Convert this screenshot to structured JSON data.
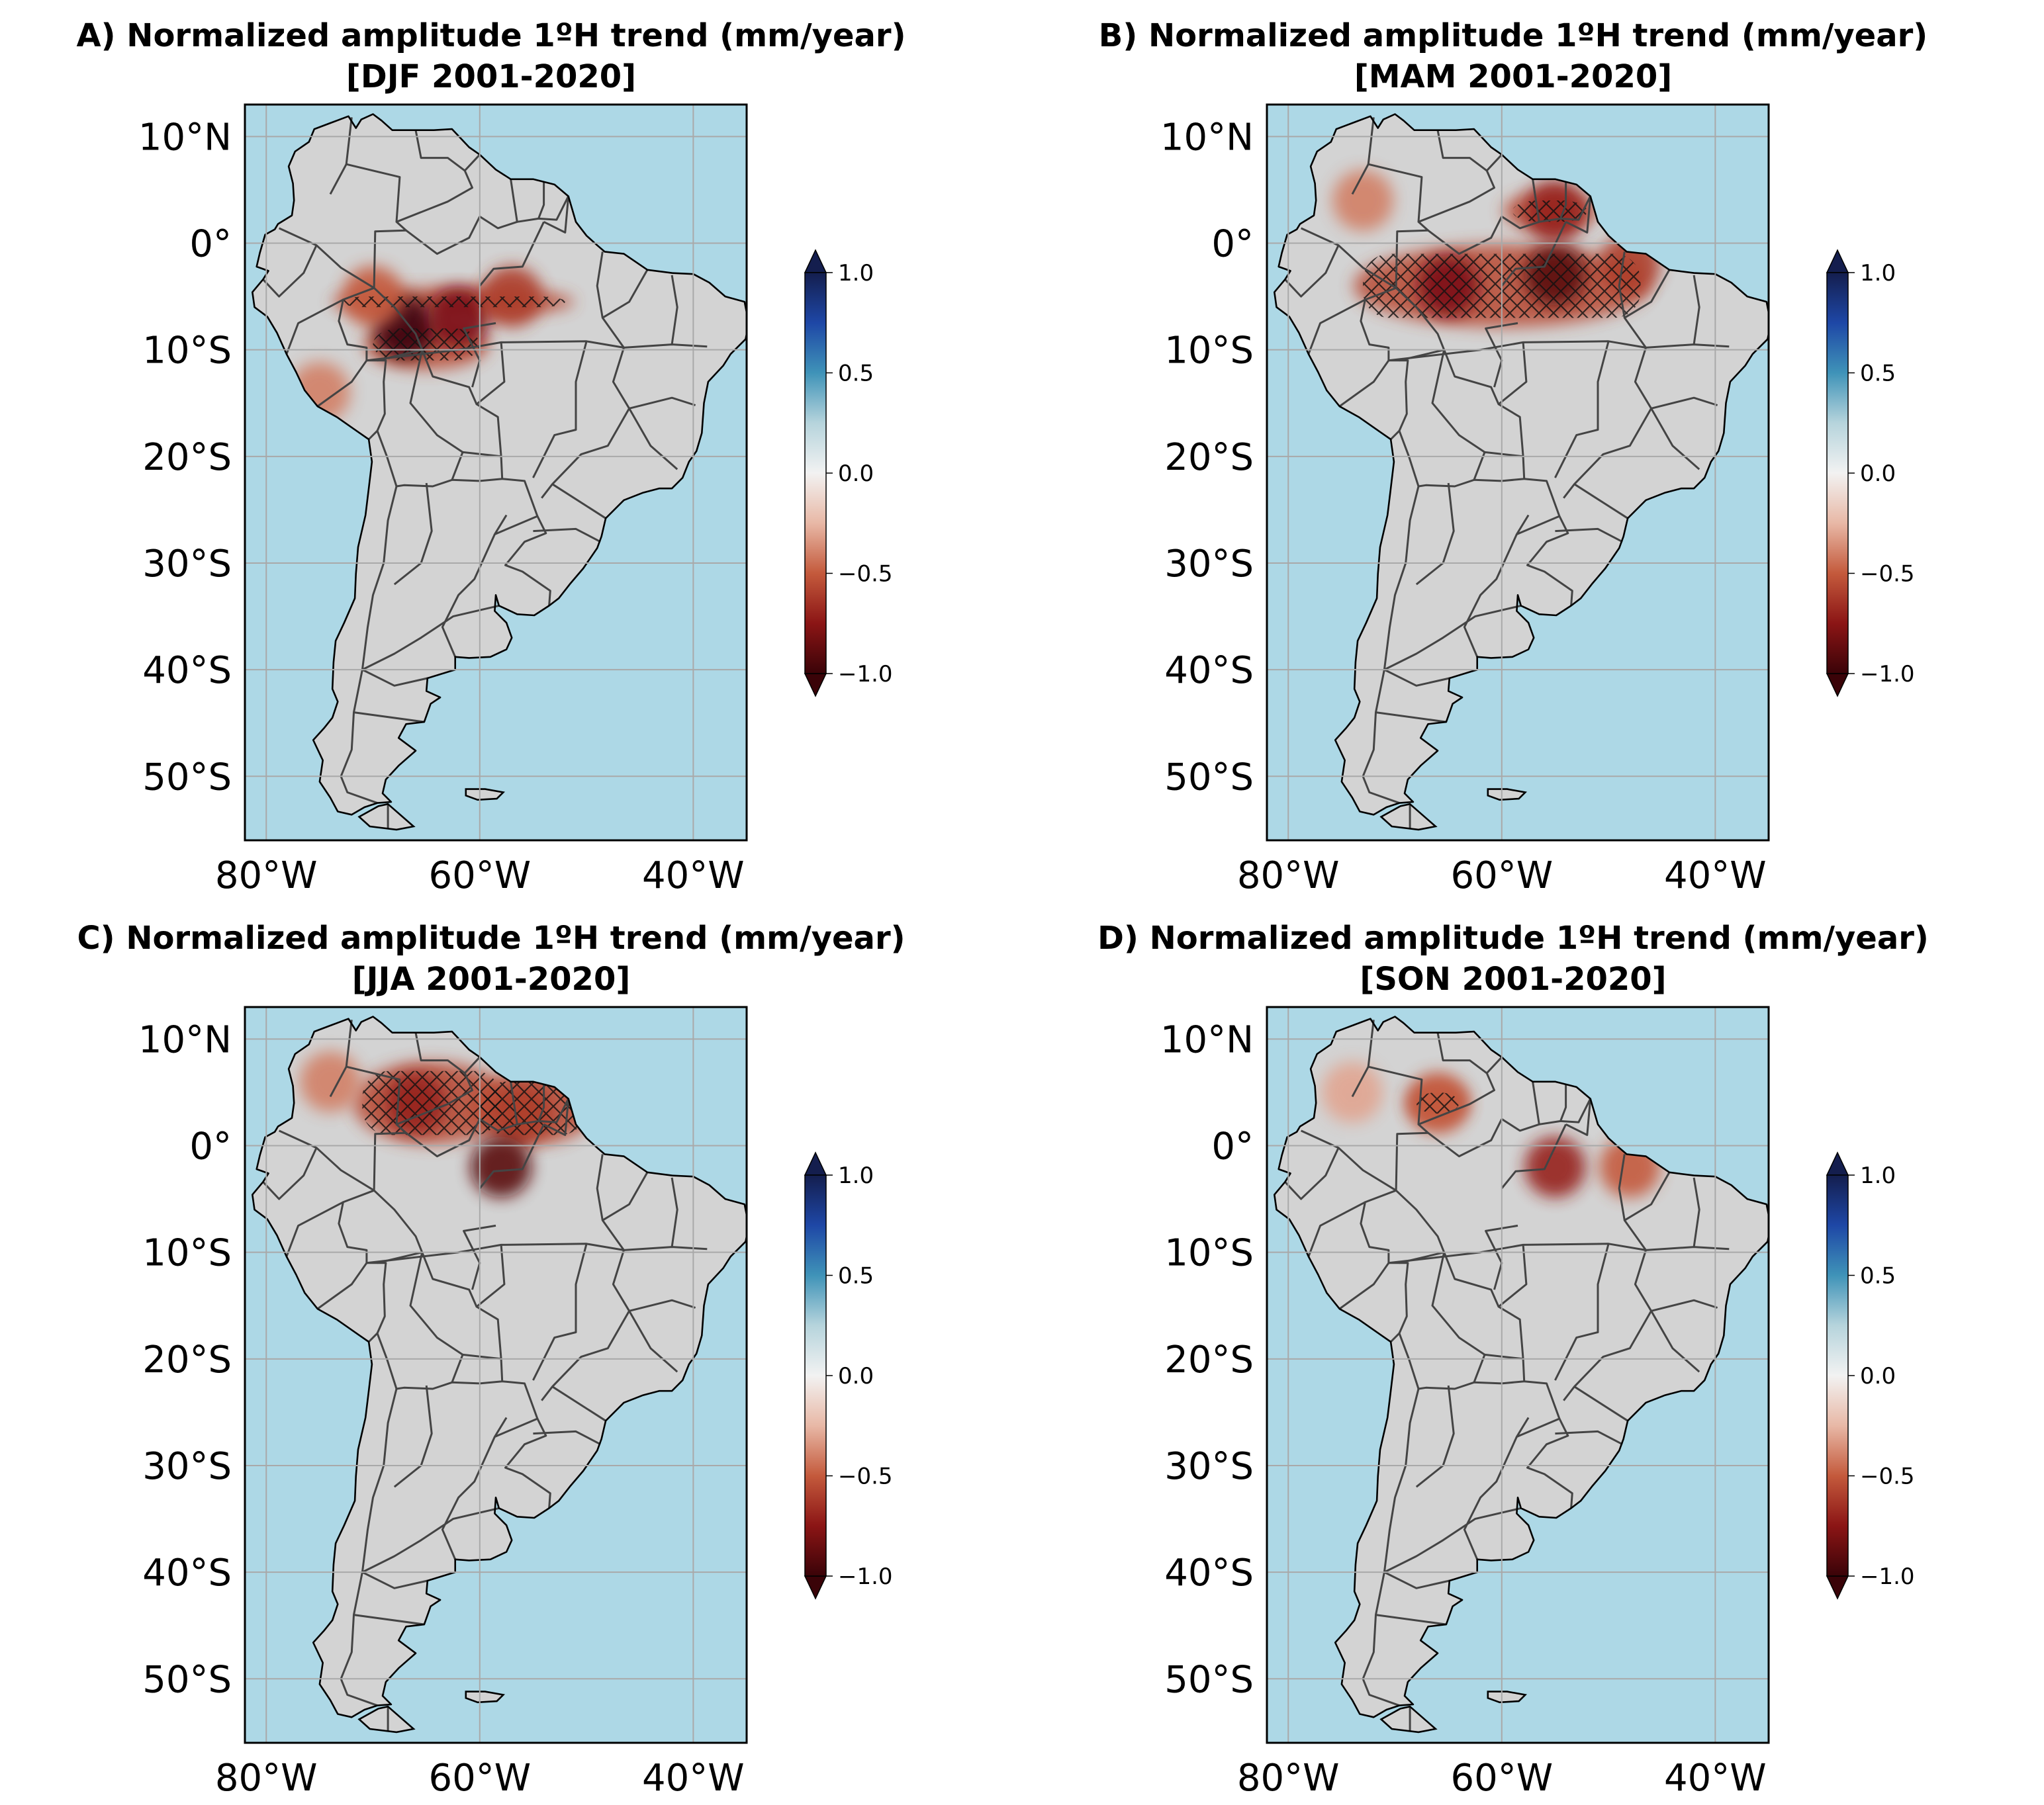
{
  "figure": {
    "colors": {
      "ocean": "#ADD8E6",
      "land": "#D3D3D3",
      "grid": "#A9A9A9",
      "border": "#444444",
      "coast": "#000000",
      "cmap": [
        "#3a0308",
        "#8b1515",
        "#c45a3c",
        "#e8b8a6",
        "#f2f2f2",
        "#b6d4dc",
        "#3f93b8",
        "#1e47a6",
        "#141e4e"
      ]
    },
    "map_extent": {
      "lon": [
        -82,
        -35
      ],
      "lat": [
        -56,
        13
      ]
    },
    "lat_ticks": [
      10,
      0,
      -10,
      -20,
      -30,
      -40,
      -50
    ],
    "lat_labels": [
      "10°N",
      "0°",
      "10°S",
      "20°S",
      "30°S",
      "40°S",
      "50°S"
    ],
    "lon_ticks": [
      -80,
      -60,
      -40
    ],
    "lon_labels": [
      "80°W",
      "60°W",
      "40°W"
    ],
    "colorbar": {
      "range": [
        -1.0,
        1.0
      ],
      "ticks": [
        1.0,
        0.5,
        0.0,
        -0.5,
        -1.0
      ],
      "tick_labels": [
        "1.0",
        "0.5",
        "0.0",
        "−0.5",
        "−1.0"
      ],
      "extend": "both",
      "cmap_name": "diverging red-white-blue"
    }
  },
  "panels": [
    {
      "id": "A",
      "title_line1": "A) Normalized amplitude 1ºH trend (mm/year)",
      "title_line2": "[DJF 2001-2020]",
      "hatched_regions": [
        [
          -73,
          -6,
          -52,
          -5
        ],
        [
          -70,
          -11,
          -60,
          -8
        ]
      ],
      "trend_patches": [
        [
          -67,
          -8,
          -1.0
        ],
        [
          -62,
          -7,
          -0.8
        ],
        [
          -57,
          -5,
          -0.6
        ],
        [
          -70,
          -5,
          -0.5
        ],
        [
          -75,
          -14,
          -0.4
        ]
      ]
    },
    {
      "id": "B",
      "title_line1": "B) Normalized amplitude 1ºH trend (mm/year)",
      "title_line2": "[MAM 2001-2020]",
      "hatched_regions": [
        [
          -73,
          -7,
          -47,
          -1
        ],
        [
          -59,
          2,
          -52,
          4
        ]
      ],
      "trend_patches": [
        [
          -65,
          -4,
          -0.8
        ],
        [
          -55,
          -3,
          -0.9
        ],
        [
          -55,
          3,
          -0.7
        ],
        [
          -73,
          4,
          -0.4
        ],
        [
          -48,
          -2,
          -0.6
        ]
      ]
    },
    {
      "id": "C",
      "title_line1": "C) Normalized amplitude 1ºH trend (mm/year)",
      "title_line2": "[JJA 2001-2020]",
      "hatched_regions": [
        [
          -71,
          1,
          -58,
          7
        ],
        [
          -60,
          1,
          -50,
          6
        ]
      ],
      "trend_patches": [
        [
          -66,
          4,
          -0.7
        ],
        [
          -56,
          3,
          -0.6
        ],
        [
          -58,
          -2,
          -0.9
        ],
        [
          -74,
          6,
          -0.4
        ]
      ]
    },
    {
      "id": "D",
      "title_line1": "D) Normalized amplitude 1ºH trend (mm/year)",
      "title_line2": "[SON 2001-2020]",
      "hatched_regions": [
        [
          -68,
          3,
          -64,
          5
        ]
      ],
      "trend_patches": [
        [
          -66,
          4,
          -0.5
        ],
        [
          -55,
          -2,
          -0.7
        ],
        [
          -48,
          -2,
          -0.5
        ],
        [
          -74,
          5,
          -0.3
        ]
      ]
    }
  ]
}
